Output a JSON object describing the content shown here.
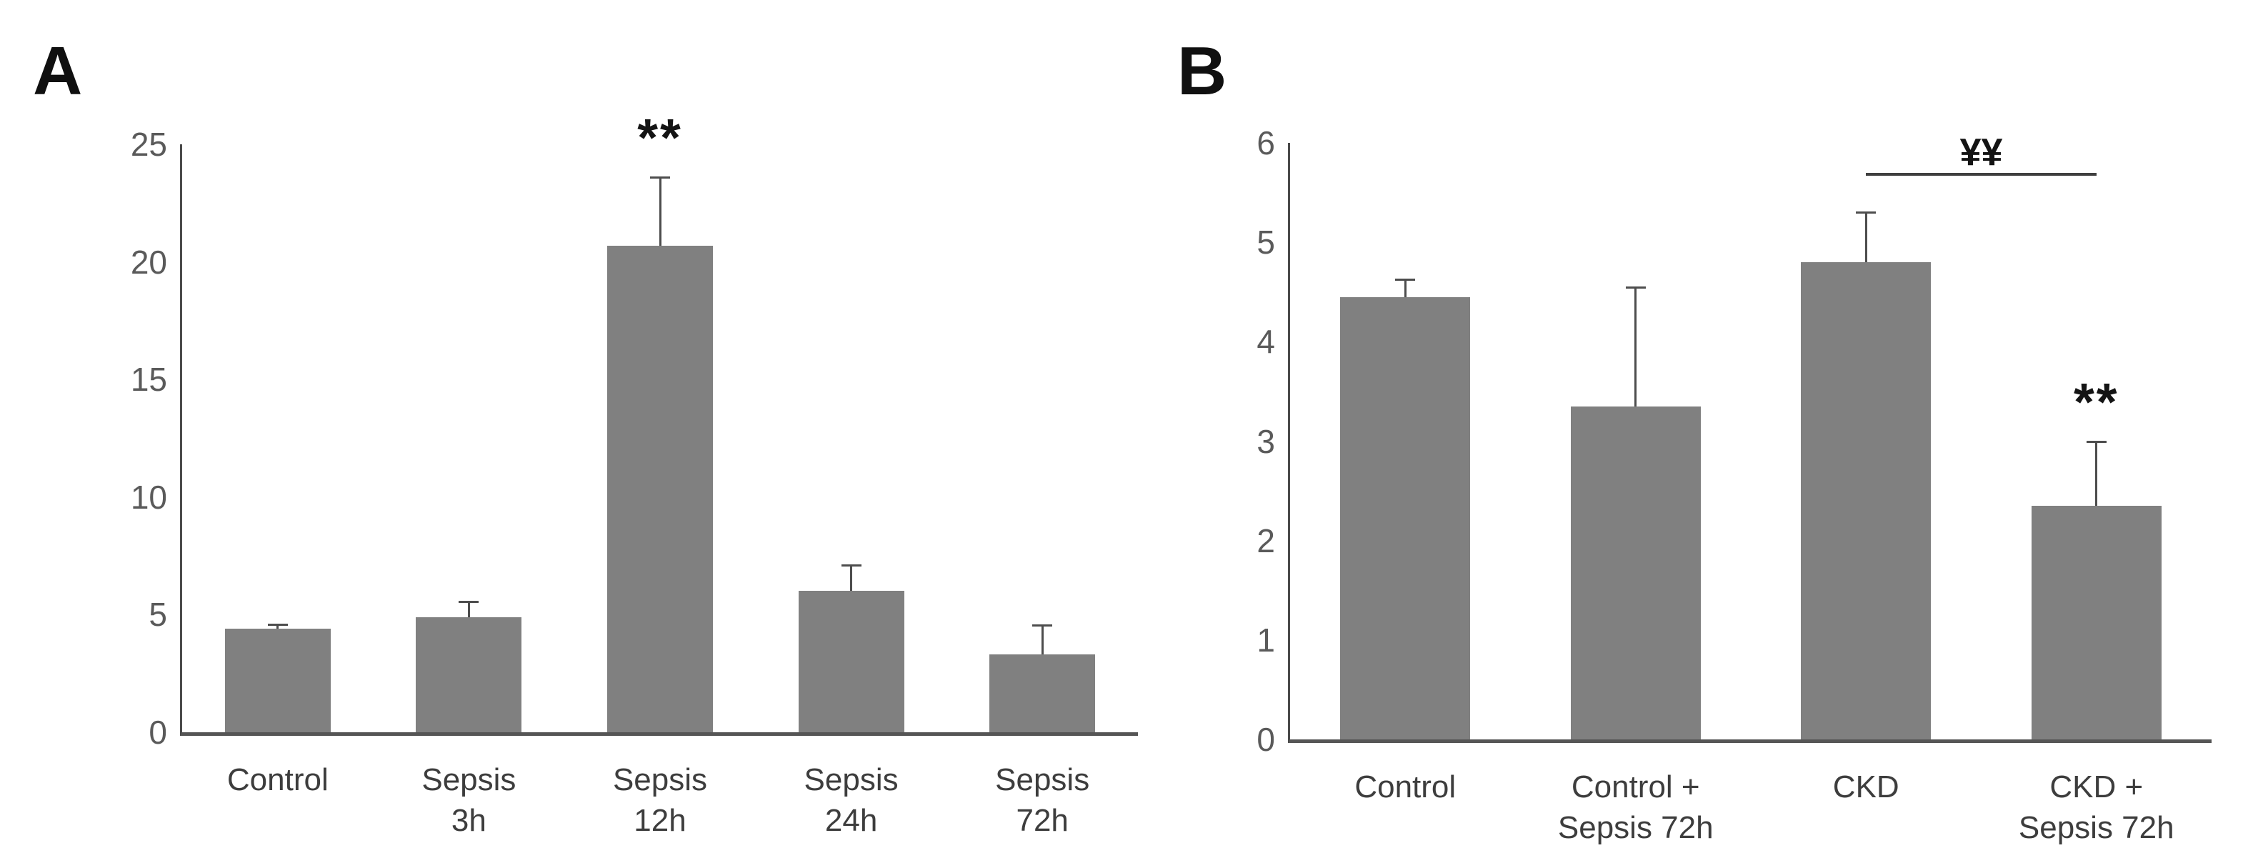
{
  "colors": {
    "bar_fill": "#808080",
    "axis_line": "#4a4a4a",
    "error_bar": "#4d4d4d",
    "tick_text": "#5a5a5a",
    "category_text": "#3d3d3d",
    "annotation_text": "#141414"
  },
  "chart_data": [
    {
      "type": "bar",
      "panel": "A",
      "title": "",
      "xlabel": "",
      "ylabel": "",
      "categories": [
        "Control",
        "Sepsis 3h",
        "Sepsis 12h",
        "Sepsis 24h",
        "Sepsis 72h"
      ],
      "category_label_lines": [
        [
          "Control"
        ],
        [
          "Sepsis",
          "3h"
        ],
        [
          "Sepsis",
          "12h"
        ],
        [
          "Sepsis",
          "24h"
        ],
        [
          "Sepsis",
          "72h"
        ]
      ],
      "values": [
        4.4,
        4.9,
        20.7,
        6.0,
        3.3
      ],
      "errors_plus": [
        0.2,
        0.65,
        2.9,
        1.1,
        1.25
      ],
      "significance": [
        "",
        "",
        "**",
        "",
        ""
      ],
      "ylim": [
        0,
        25
      ],
      "yticks": [
        0,
        5,
        10,
        15,
        20,
        25
      ],
      "grid": false,
      "legend": null,
      "bar_color": "#808080"
    },
    {
      "type": "bar",
      "panel": "B",
      "title": "",
      "xlabel": "",
      "ylabel": "",
      "categories": [
        "Control",
        "Control + Sepsis 72h",
        "CKD",
        "CKD + Sepsis 72h"
      ],
      "category_label_lines": [
        [
          "Control"
        ],
        [
          "Control +",
          "Sepsis 72h"
        ],
        [
          "CKD"
        ],
        [
          "CKD +",
          "Sepsis 72h"
        ]
      ],
      "values": [
        4.45,
        3.35,
        4.8,
        2.35
      ],
      "errors_plus": [
        0.18,
        1.2,
        0.5,
        0.65
      ],
      "significance": [
        "",
        "",
        "",
        "**"
      ],
      "ylim": [
        0,
        6
      ],
      "yticks": [
        0,
        1,
        2,
        3,
        4,
        5,
        6
      ],
      "grid": false,
      "legend": null,
      "bar_color": "#808080",
      "bracket": {
        "from_index": 2,
        "to_index": 3,
        "y_value": 5.7,
        "label": "¥¥"
      }
    }
  ]
}
